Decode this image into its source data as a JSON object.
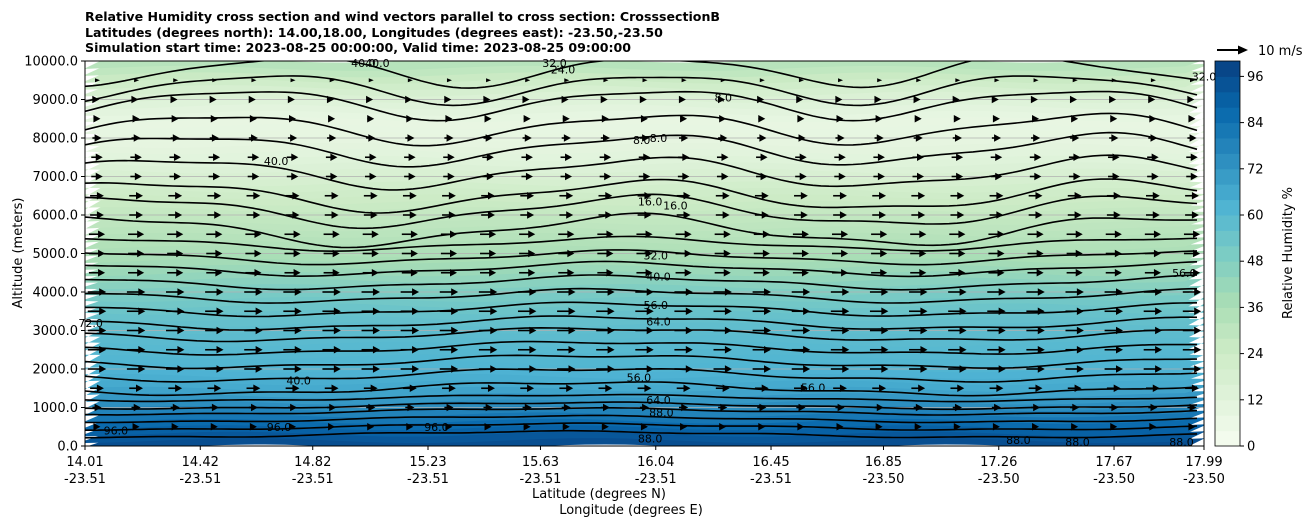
{
  "title_lines": [
    "Relative Humidity cross section and wind vectors parallel to cross section: CrosssectionB",
    "Latitudes (degrees north): 14.00,18.00, Longitudes (degrees east): -23.50,-23.50",
    "Simulation start time: 2023-08-25 00:00:00, Valid time: 2023-08-25 09:00:00"
  ],
  "chart_data": {
    "type": "heatmap",
    "ylabel": "Altitude (meters)",
    "xlabel_line1": "Latitude (degrees N)",
    "xlabel_line2": "Longitude (degrees E)",
    "ylim": [
      0,
      10000
    ],
    "y_ticks": [
      "0.0",
      "1000.0",
      "2000.0",
      "3000.0",
      "4000.0",
      "5000.0",
      "6000.0",
      "7000.0",
      "8000.0",
      "9000.0",
      "10000.0"
    ],
    "y_tick_values": [
      0,
      1000,
      2000,
      3000,
      4000,
      5000,
      6000,
      7000,
      8000,
      9000,
      10000
    ],
    "x_ticks": [
      {
        "lat": "14.01",
        "lon": "-23.51"
      },
      {
        "lat": "14.42",
        "lon": "-23.51"
      },
      {
        "lat": "14.82",
        "lon": "-23.51"
      },
      {
        "lat": "15.23",
        "lon": "-23.51"
      },
      {
        "lat": "15.63",
        "lon": "-23.51"
      },
      {
        "lat": "16.04",
        "lon": "-23.51"
      },
      {
        "lat": "16.45",
        "lon": "-23.51"
      },
      {
        "lat": "16.85",
        "lon": "-23.50"
      },
      {
        "lat": "17.26",
        "lon": "-23.50"
      },
      {
        "lat": "17.67",
        "lon": "-23.50"
      },
      {
        "lat": "17.99",
        "lon": "-23.50"
      }
    ],
    "colorbar": {
      "label": "Relative Humidity %",
      "min": 0,
      "max": 100,
      "step": 4,
      "ticks": [
        "0",
        "12",
        "24",
        "36",
        "48",
        "60",
        "72",
        "84",
        "96"
      ],
      "tick_values": [
        0,
        12,
        24,
        36,
        48,
        60,
        72,
        84,
        96
      ]
    },
    "quiver_key": "10 m/s",
    "grid": "horizontal",
    "rh_profile": {
      "altitudes": [
        0,
        300,
        600,
        1000,
        1500,
        2000,
        2500,
        3000,
        3500,
        4000,
        4500,
        5000,
        5500,
        6000,
        6500,
        7000,
        7500,
        8000,
        8500,
        9000,
        9500,
        10000
      ],
      "values": [
        97,
        92,
        86,
        76,
        66,
        62,
        60,
        58,
        55,
        50,
        42,
        36,
        32,
        28,
        24,
        18,
        12,
        9,
        8,
        14,
        24,
        34
      ]
    },
    "contour_labels": [
      {
        "text": "40.0",
        "x_lat": 15.05,
        "alt": 9950
      },
      {
        "text": "40.0",
        "x_lat": 15.0,
        "alt": 9950
      },
      {
        "text": "32.0",
        "x_lat": 15.68,
        "alt": 9950
      },
      {
        "text": "24.0",
        "x_lat": 15.71,
        "alt": 9780
      },
      {
        "text": "8.0",
        "x_lat": 16.28,
        "alt": 9050
      },
      {
        "text": "8.0",
        "x_lat": 15.99,
        "alt": 7950
      },
      {
        "text": "8.0",
        "x_lat": 16.05,
        "alt": 8000
      },
      {
        "text": "40.0",
        "x_lat": 14.69,
        "alt": 7400
      },
      {
        "text": "16.0",
        "x_lat": 16.02,
        "alt": 6350
      },
      {
        "text": "16.0",
        "x_lat": 16.11,
        "alt": 6250
      },
      {
        "text": "32.0",
        "x_lat": 16.04,
        "alt": 4950
      },
      {
        "text": "40.0",
        "x_lat": 16.05,
        "alt": 4400
      },
      {
        "text": "56.0",
        "x_lat": 16.04,
        "alt": 3660
      },
      {
        "text": "64.0",
        "x_lat": 16.05,
        "alt": 3230
      },
      {
        "text": "56.0",
        "x_lat": 15.98,
        "alt": 1780
      },
      {
        "text": "56.0",
        "x_lat": 16.6,
        "alt": 1520
      },
      {
        "text": "64.0",
        "x_lat": 16.05,
        "alt": 1200
      },
      {
        "text": "88.0",
        "x_lat": 16.06,
        "alt": 870
      },
      {
        "text": "96.0",
        "x_lat": 14.12,
        "alt": 400
      },
      {
        "text": "96.0",
        "x_lat": 14.7,
        "alt": 500
      },
      {
        "text": "96.0",
        "x_lat": 15.26,
        "alt": 500
      },
      {
        "text": "88.0",
        "x_lat": 16.02,
        "alt": 200
      },
      {
        "text": "88.0",
        "x_lat": 17.33,
        "alt": 150
      },
      {
        "text": "88.0",
        "x_lat": 17.54,
        "alt": 100
      },
      {
        "text": "88.0",
        "x_lat": 17.91,
        "alt": 100
      },
      {
        "text": "56.0",
        "x_lat": 17.92,
        "alt": 4500
      },
      {
        "text": "32.0",
        "x_lat": 17.99,
        "alt": 9600
      },
      {
        "text": "72.0",
        "x_lat": 14.03,
        "alt": 3200
      },
      {
        "text": "40.0",
        "x_lat": 14.77,
        "alt": 1700
      }
    ],
    "wind": {
      "rows_alt": [
        500,
        1000,
        1500,
        2000,
        2500,
        3000,
        3500,
        4000,
        4500,
        5000,
        5500,
        6000,
        6500,
        7000,
        7500,
        8000,
        8500,
        9000,
        9500
      ],
      "speed_ms": [
        3,
        4,
        6,
        8,
        8,
        8,
        8,
        8,
        7,
        7,
        7,
        6,
        6,
        5,
        5,
        4,
        3,
        2,
        1
      ]
    }
  }
}
